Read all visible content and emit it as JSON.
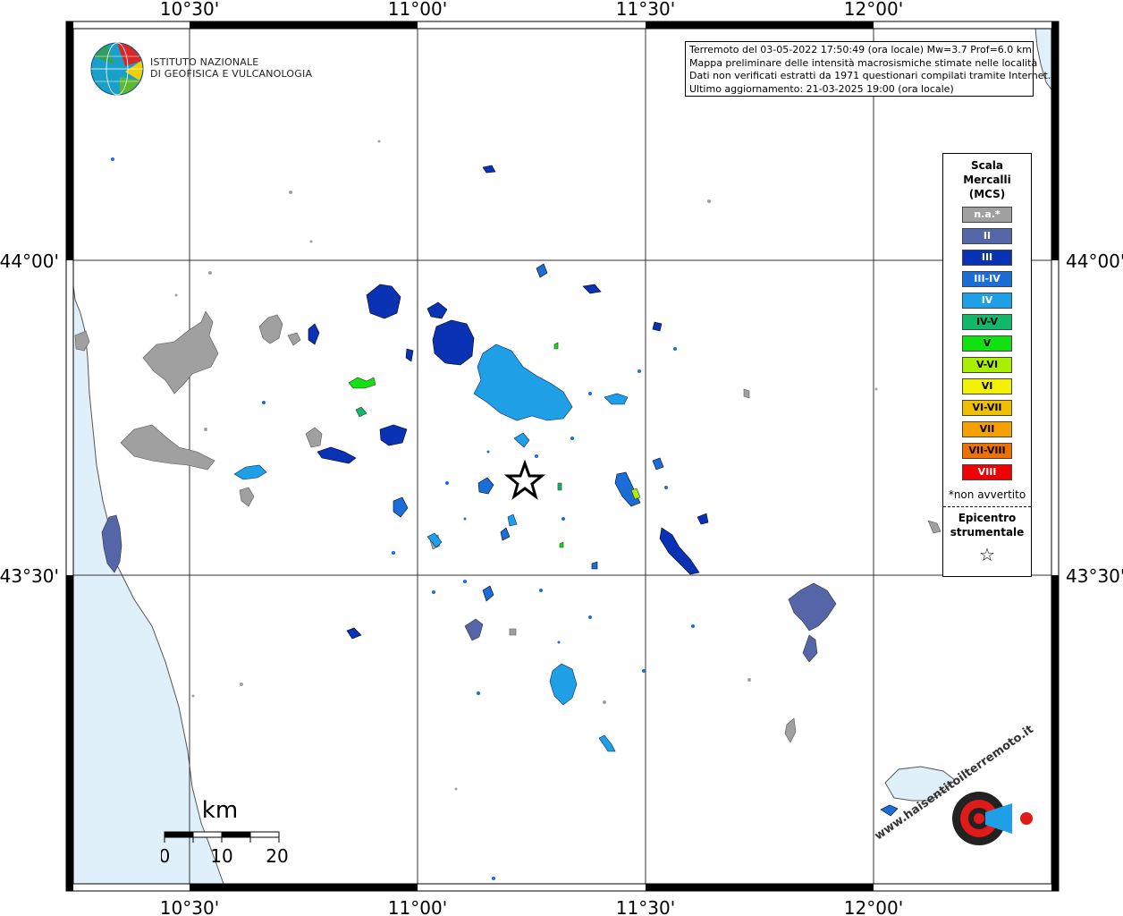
{
  "caption": {
    "line1": "Terremoto del 03-05-2022 17:50:49 (ora locale) Mw=3.7 Prof=6.0 km",
    "line2": "Mappa preliminare delle intensità macrosismiche stimate nelle località",
    "line3": "Dati non verificati estratti da 1971 questionari compilati tramite Internet.",
    "line4": "Ultimo aggiornamento: 21-03-2025 19:00 (ora locale)"
  },
  "logo_ingv": {
    "line1": "ISTITUTO NAZIONALE",
    "line2": "DI GEOFISICA E VULCANOLOGIA"
  },
  "axes": {
    "top": [
      "10°30'",
      "11°00'",
      "11°30'",
      "12°00'"
    ],
    "bottom": [
      "10°30'",
      "11°00'",
      "11°30'",
      "12°00'"
    ],
    "left": [
      "44°00'",
      "43°30'"
    ],
    "right": [
      "44°00'",
      "43°30'"
    ]
  },
  "legend": {
    "title_line1": "Scala",
    "title_line2": "Mercalli",
    "title_line3": "(MCS)",
    "items": [
      {
        "label": "n.a.*",
        "color": "#a0a0a0",
        "dark": false
      },
      {
        "label": "II",
        "color": "#5566a8",
        "dark": false
      },
      {
        "label": "III",
        "color": "#0a32b4",
        "dark": false
      },
      {
        "label": "III-IV",
        "color": "#1a6ed6",
        "dark": false
      },
      {
        "label": "IV",
        "color": "#1e9fe6",
        "dark": false
      },
      {
        "label": "IV-V",
        "color": "#12b86a",
        "dark": true
      },
      {
        "label": "V",
        "color": "#11e011",
        "dark": true
      },
      {
        "label": "V-VI",
        "color": "#a8f000",
        "dark": true
      },
      {
        "label": "VI",
        "color": "#f2f200",
        "dark": true
      },
      {
        "label": "VI-VII",
        "color": "#f0c000",
        "dark": true
      },
      {
        "label": "VII",
        "color": "#f6a000",
        "dark": true
      },
      {
        "label": "VII-VIII",
        "color": "#f07000",
        "dark": true
      },
      {
        "label": "VIII",
        "color": "#f00000",
        "dark": false
      }
    ],
    "note": "*non avvertito",
    "epicenter_line1": "Epicentro",
    "epicenter_line2": "strumentale",
    "epicenter_symbol": "☆"
  },
  "scalebar": {
    "unit": "km",
    "ticks": [
      "0",
      "10",
      "20"
    ]
  },
  "watermark": {
    "text": "www.haisentitoilterremoto.it"
  },
  "colors": {
    "sea": "#dff0fb",
    "frame": "#000000",
    "grid": "#333333"
  }
}
